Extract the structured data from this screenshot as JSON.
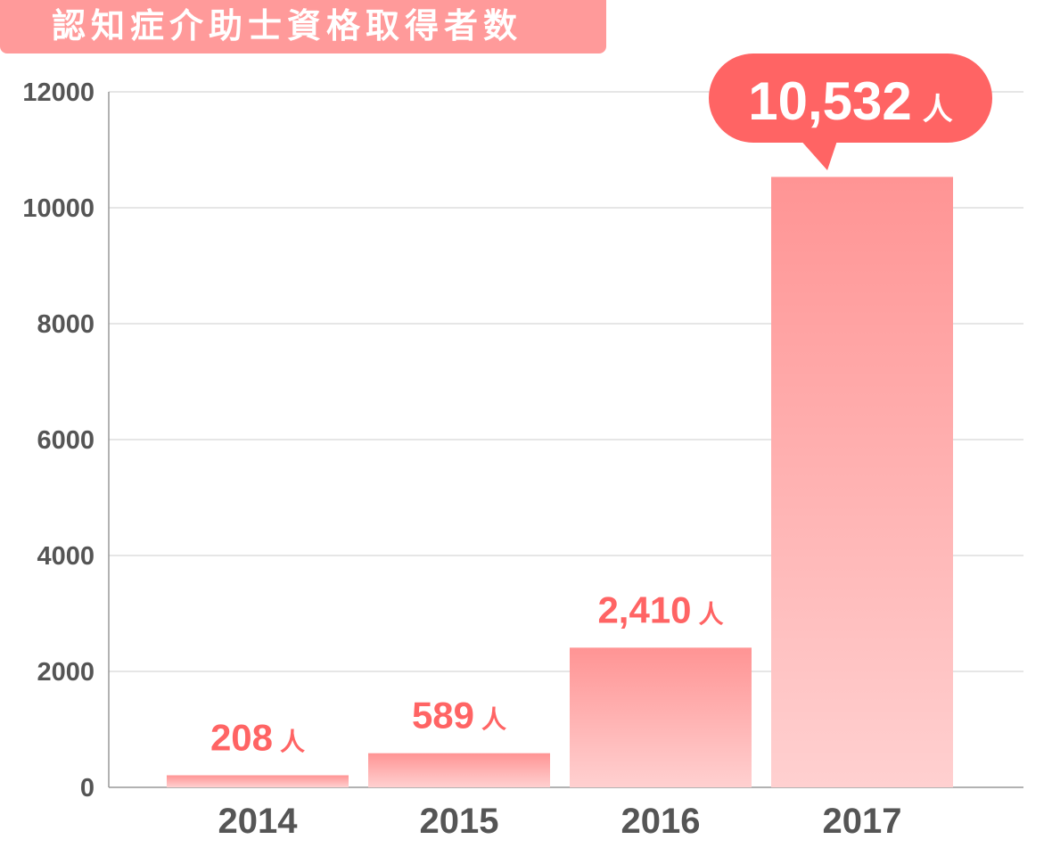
{
  "title": "認知症介助士資格取得者数",
  "chart_data": {
    "type": "bar",
    "title": "認知症介助士資格取得者数",
    "xlabel": "",
    "ylabel": "",
    "categories": [
      "2014",
      "2015",
      "2016",
      "2017"
    ],
    "values": [
      208,
      589,
      2410,
      10532
    ],
    "value_labels": [
      "208",
      "589",
      "2,410",
      "10,532"
    ],
    "unit": "人",
    "y_ticks": [
      "0",
      "2000",
      "4000",
      "6000",
      "8000",
      "10000",
      "12000"
    ],
    "ylim": [
      0,
      12000
    ],
    "grid": true,
    "highlight_index": 3
  },
  "colors": {
    "accent": "#ff6464",
    "title_bg": "#ff9a9a",
    "bar_top": "#ff9494",
    "bar_bottom": "#ffd0d0",
    "axis_text": "#555555",
    "grid": "#cccccc"
  }
}
